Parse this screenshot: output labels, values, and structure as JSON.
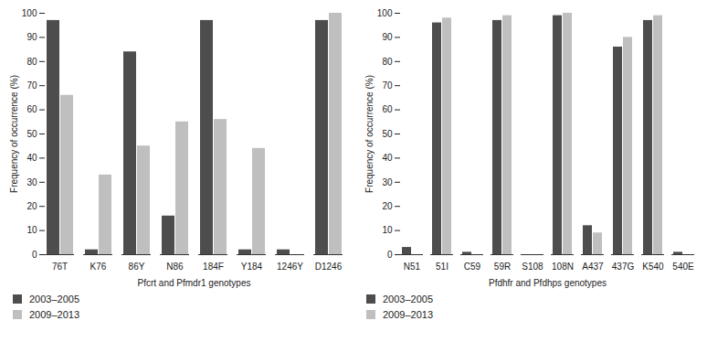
{
  "chart_data": [
    {
      "type": "bar",
      "xlabel": "Pfcrt and Pfmdr1 genotypes",
      "ylabel": "Frequency of occurrence (%)",
      "categories": [
        "76T",
        "K76",
        "86Y",
        "N86",
        "184F",
        "Y184",
        "1246Y",
        "D1246"
      ],
      "series": [
        {
          "name": "2003–2005",
          "color": "#4d4d4d",
          "values": [
            97,
            2,
            84,
            16,
            97,
            2,
            2,
            97
          ]
        },
        {
          "name": "2009–2013",
          "color": "#bfbfbf",
          "values": [
            66,
            33,
            45,
            55,
            56,
            44,
            0,
            100
          ]
        }
      ],
      "ylim": [
        0,
        100
      ],
      "yticks": [
        0,
        10,
        20,
        30,
        40,
        50,
        60,
        70,
        80,
        90,
        100
      ],
      "grid": false,
      "legend": "bottom"
    },
    {
      "type": "bar",
      "xlabel": "Pfdhfr and Pfdhps genotypes",
      "ylabel": "Frequency of occurrence (%)",
      "categories": [
        "N51",
        "51I",
        "C59",
        "59R",
        "S108",
        "108N",
        "A437",
        "437G",
        "K540",
        "540E"
      ],
      "series": [
        {
          "name": "2003–2005",
          "color": "#4d4d4d",
          "values": [
            3,
            96,
            1,
            97,
            0,
            99,
            12,
            86,
            97,
            1
          ]
        },
        {
          "name": "2009–2013",
          "color": "#bfbfbf",
          "values": [
            0,
            98,
            0,
            99,
            0,
            100,
            9,
            90,
            99,
            0
          ]
        }
      ],
      "ylim": [
        0,
        100
      ],
      "yticks": [
        0,
        10,
        20,
        30,
        40,
        50,
        60,
        70,
        80,
        90,
        100
      ],
      "grid": false,
      "legend": "bottom"
    }
  ]
}
